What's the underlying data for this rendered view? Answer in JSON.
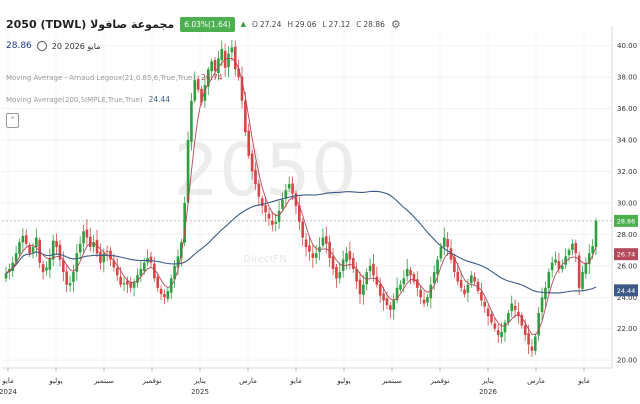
{
  "header": {
    "title": "2050  (TDWL)  مجموعة صافولا",
    "change": "6.03%(1.64)",
    "ohlc": [
      {
        "label": "O",
        "value": "27.24"
      },
      {
        "label": "H",
        "value": "29.06"
      },
      {
        "label": "L",
        "value": "27.12"
      },
      {
        "label": "C",
        "value": "28.86"
      }
    ],
    "price": "28.86",
    "date": "مايو 2026 20"
  },
  "indicators": [
    {
      "label": "Moving Average - Arnaud Legoux(21,0.85,6,True,True)",
      "value": "26.74",
      "color": "#b5485a"
    },
    {
      "label": "Moving Average(200,SIMPLE,True,True)",
      "value": "24.44",
      "color": "#3b5b86"
    }
  ],
  "watermark": {
    "symbol": "2050",
    "brand": "DirectFN"
  },
  "colors": {
    "up": "#2e9e3e",
    "down": "#d64545",
    "alma": "#b5485a",
    "sma": "#3b5b86",
    "price_tag": "#4caf50"
  },
  "chart_data": {
    "type": "candlestick",
    "y_ticks": [
      "40.00",
      "38.00",
      "36.00",
      "34.00",
      "32.00",
      "30.00",
      "28.00",
      "26.00",
      "24.00",
      "22.00",
      "20.00"
    ],
    "ylim": [
      19.5,
      41
    ],
    "x_labels": [
      {
        "label": "مايو",
        "sub": "2024"
      },
      {
        "label": "يوليو",
        "sub": ""
      },
      {
        "label": "سبتمبر",
        "sub": ""
      },
      {
        "label": "نوفمبر",
        "sub": ""
      },
      {
        "label": "يناير",
        "sub": "2025"
      },
      {
        "label": "مارس",
        "sub": ""
      },
      {
        "label": "مايو",
        "sub": ""
      },
      {
        "label": "يوليو",
        "sub": ""
      },
      {
        "label": "سبتمبر",
        "sub": ""
      },
      {
        "label": "نوفمبر",
        "sub": ""
      },
      {
        "label": "يناير",
        "sub": "2026"
      },
      {
        "label": "مارس",
        "sub": ""
      },
      {
        "label": "مايو",
        "sub": ""
      }
    ],
    "price_tags": [
      {
        "value": 28.86,
        "label": "28.86",
        "color": "#4caf50"
      },
      {
        "value": 26.74,
        "label": "26.74",
        "color": "#b5485a"
      },
      {
        "value": 24.44,
        "label": "24.44",
        "color": "#3b5b86"
      }
    ],
    "reference_line": 28.86,
    "close_series": [
      25.5,
      25.8,
      26.2,
      26.8,
      27.5,
      27.9,
      27.4,
      26.8,
      27.2,
      27.8,
      26.2,
      25.6,
      25.9,
      26.5,
      27.6,
      27.2,
      26.4,
      25.6,
      24.8,
      24.9,
      25.6,
      26.8,
      27.4,
      28.2,
      27.8,
      27.2,
      27.5,
      26.8,
      26.2,
      26.8,
      26.9,
      26.4,
      25.9,
      25.4,
      24.8,
      24.9,
      24.8,
      24.6,
      25.0,
      25.4,
      25.8,
      26.2,
      26.5,
      26.2,
      25.2,
      24.6,
      24.2,
      24.0,
      24.4,
      25.2,
      26.0,
      26.6,
      27.5,
      30.0,
      34.0,
      36.5,
      37.8,
      37.2,
      36.4,
      37.5,
      38.5,
      39.0,
      38.4,
      39.2,
      39.8,
      38.6,
      39.5,
      39.9,
      38.5,
      38.0,
      36.5,
      34.5,
      33.0,
      32.0,
      31.2,
      30.4,
      29.8,
      29.4,
      29.0,
      28.6,
      28.8,
      29.5,
      30.2,
      30.8,
      31.2,
      30.6,
      29.8,
      28.8,
      27.8,
      27.2,
      26.9,
      26.5,
      26.8,
      27.2,
      27.8,
      27.4,
      26.5,
      25.8,
      25.2,
      25.6,
      26.4,
      26.8,
      26.4,
      25.8,
      25.0,
      24.2,
      24.8,
      25.6,
      26.0,
      25.4,
      24.8,
      24.1,
      23.8,
      23.5,
      23.2,
      23.8,
      24.6,
      24.8,
      25.2,
      25.8,
      25.4,
      25.0,
      24.6,
      24.0,
      23.6,
      24.0,
      24.8,
      25.6,
      26.4,
      27.2,
      27.8,
      27.2,
      26.4,
      25.6,
      25.0,
      24.6,
      24.2,
      24.8,
      25.4,
      25.0,
      24.4,
      23.8,
      23.4,
      22.8,
      22.4,
      22.0,
      21.6,
      21.8,
      22.4,
      23.0,
      23.6,
      23.2,
      22.8,
      22.2,
      21.6,
      21.0,
      20.6,
      21.5,
      23.0,
      24.0,
      24.6,
      25.6,
      26.2,
      26.4,
      25.8,
      26.0,
      26.6,
      27.0,
      27.4,
      26.8,
      24.6,
      25.6,
      26.2,
      26.8,
      27.24,
      28.86
    ]
  }
}
